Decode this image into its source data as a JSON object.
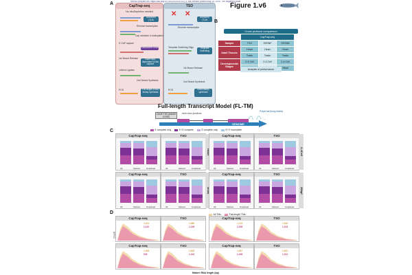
{
  "header": {
    "note": "bioRxiv preprint doi: https://doi.org/10.1101/2025.05.15.(?); this version posted May 15, 2025. The copyright holder for this preprint",
    "figure_title": "Figure 1.v6"
  },
  "panel_labels": {
    "a": "A",
    "b": "B",
    "c": "C",
    "d": "D"
  },
  "panel_a": {
    "captrap": {
      "title": "CapTrap-seq",
      "subtitle": "No riboDepletion needed",
      "steps": [
        "Reverse transcription",
        "Cap oxidation & biotinylation & RNAse",
        "5' CAP capture",
        "1st Strand Release",
        "Linkers Ligation",
        "2nd Strand Synthesis",
        "PCR",
        "Full-length cDNA library synthesis"
      ],
      "boxes": [
        "Anchored (T)16",
        "Streptavidin bead",
        "Cap/PolyA-dependent cDNA capture",
        "Full-length cDNA library synthesis"
      ]
    },
    "tso": {
      "title": "TSO",
      "steps": [
        "Reverse transcription",
        "Template Switching Oligo",
        "1st Strand Release",
        "2nd Strand Synthesis",
        "PCR",
        "cDNA library synthesis"
      ],
      "boxes": [
        "Anchored (T)16",
        "Template Switching",
        "cDNA library synthesis"
      ]
    }
  },
  "panel_b": {
    "title": "Cross protocol comparison",
    "col_header": "CapTrap-seq",
    "cols": [
      "TSO",
      "SSSNF",
      "SSSNB"
    ],
    "rows": [
      {
        "label": "Sample",
        "values": [
          "TSO",
          "SSSNF",
          "SSSNB"
        ]
      },
      {
        "label": "Adult Tissues",
        "values": [
          "Heart",
          "Heart",
          "Heart"
        ]
      },
      {
        "label": "",
        "values": [
          "Testis",
          "Testis",
          "Testis"
        ]
      },
      {
        "label": "Developmental Stages",
        "values": [
          "2-4 Cell",
          "2-4 Cell",
          "2-4 Cell"
        ]
      },
      {
        "label": "",
        "values": [
          "28hpf",
          "28hpf",
          "28hpf"
        ]
      }
    ],
    "footer": "Analysis of performance"
  },
  "model": {
    "title": "Full-length Transcript Model (FL-TM)",
    "cage": "CAGE TSS (DANIO CODE)",
    "junction": "exon-exon junctions",
    "polya": "PolyA tail (long-reads)",
    "genome": "GENOME"
  },
  "panel_c": {
    "legend": [
      "5' complete only",
      "5'+3' complete",
      "3' complete only",
      "5'+3' incomplete"
    ],
    "colors": [
      "#b24ba3",
      "#7b3294",
      "#c9a6e0",
      "#9ecae1"
    ],
    "categories": [
      "All",
      "Spliced",
      "Unspliced"
    ],
    "yticks": [
      "100%",
      "75%",
      "50%",
      "25%",
      "0%"
    ],
    "facets": [
      {
        "proto": "CapTrap-seq",
        "tissue": "Heart",
        "row": 0
      },
      {
        "proto": "TSO",
        "tissue": "Heart",
        "row": 0
      },
      {
        "proto": "CapTrap-seq",
        "tissue": "2-4Cell",
        "row": 0
      },
      {
        "proto": "TSO",
        "tissue": "2-4Cell",
        "row": 0
      },
      {
        "proto": "CapTrap-seq",
        "tissue": "Testis",
        "row": 1
      },
      {
        "proto": "TSO",
        "tissue": "Testis",
        "row": 1
      },
      {
        "proto": "CapTrap-seq",
        "tissue": "28hpf",
        "row": 1
      },
      {
        "proto": "TSO",
        "tissue": "28hpf",
        "row": 1
      }
    ],
    "bar_labels": [
      "36.7%",
      "38.9%",
      "19.6%"
    ]
  },
  "panel_d": {
    "legend": [
      "All TMs",
      "Full-length TMs"
    ],
    "xlabel": "Mature RNA length (bp)",
    "ylabel": "Count",
    "facets": [
      {
        "proto": "CapTrap-seq",
        "tissue": "Heart",
        "n1": "1,921",
        "n2": "1,110"
      },
      {
        "proto": "TSO",
        "tissue": "Heart",
        "n1": "1,869",
        "n2": "1,128"
      },
      {
        "proto": "CapTrap-seq",
        "tissue": "2-4Cell",
        "n1": "1,122",
        "n2": "1,159"
      },
      {
        "proto": "TSO",
        "tissue": "2-4Cell",
        "n1": "1,519",
        "n2": "1,313"
      },
      {
        "proto": "CapTrap-seq",
        "tissue": "Testis",
        "n1": "1,563",
        "n2": "940"
      },
      {
        "proto": "TSO",
        "tissue": "Testis",
        "n1": "1,603",
        "n2": "1,241"
      },
      {
        "proto": "CapTrap-seq",
        "tissue": "28hpf",
        "n1": "1,847",
        "n2": "1,026"
      },
      {
        "proto": "TSO",
        "tissue": "28hpf",
        "n1": "1,601",
        "n2": "1,311"
      }
    ]
  }
}
